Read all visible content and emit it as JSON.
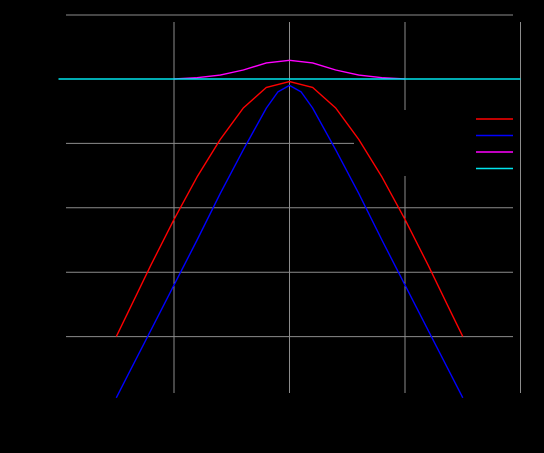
{
  "chart_data": {
    "type": "line",
    "title": "",
    "xlabel": "",
    "ylabel": "",
    "xlim": [
      -2.0,
      2.0
    ],
    "ylim": [
      -5.0,
      0.9
    ],
    "xticks": [
      -2,
      -1,
      0,
      1,
      2
    ],
    "yticks": [
      -4,
      -3,
      -2,
      -1,
      0
    ],
    "grid": true,
    "legend": {
      "placement": "right",
      "entries": [
        "",
        "",
        "",
        ""
      ]
    },
    "series": [
      {
        "color": "#ff0000",
        "x": [
          -1.5,
          -1.4,
          -1.2,
          -1.0,
          -0.8,
          -0.6,
          -0.4,
          -0.2,
          0.0,
          0.2,
          0.4,
          0.6,
          0.8,
          1.0,
          1.2,
          1.4,
          1.5
        ],
        "y": [
          -4.0,
          -3.63,
          -2.89,
          -2.18,
          -1.52,
          -0.94,
          -0.45,
          -0.13,
          -0.04,
          -0.13,
          -0.45,
          -0.94,
          -1.52,
          -2.18,
          -2.89,
          -3.63,
          -4.0
        ]
      },
      {
        "color": "#0000ff",
        "x": [
          -1.5,
          -1.4,
          -1.2,
          -1.0,
          -0.8,
          -0.6,
          -0.4,
          -0.2,
          -0.1,
          0.0,
          0.1,
          0.2,
          0.4,
          0.6,
          0.8,
          1.0,
          1.2,
          1.4,
          1.5
        ],
        "y": [
          -4.95,
          -4.6,
          -3.9,
          -3.2,
          -2.5,
          -1.78,
          -1.1,
          -0.45,
          -0.2,
          -0.1,
          -0.2,
          -0.45,
          -1.1,
          -1.78,
          -2.5,
          -3.2,
          -3.9,
          -4.6,
          -4.95
        ]
      },
      {
        "color": "#ff00ff",
        "x": [
          -1.0,
          -0.8,
          -0.6,
          -0.4,
          -0.2,
          0.0,
          0.2,
          0.4,
          0.6,
          0.8,
          1.0
        ],
        "y": [
          0.0,
          0.02,
          0.06,
          0.14,
          0.25,
          0.29,
          0.25,
          0.14,
          0.06,
          0.02,
          0.0
        ]
      },
      {
        "color": "#00e5ee",
        "x": [
          -2.0,
          2.0
        ],
        "y": [
          0.0,
          0.0
        ]
      }
    ]
  }
}
